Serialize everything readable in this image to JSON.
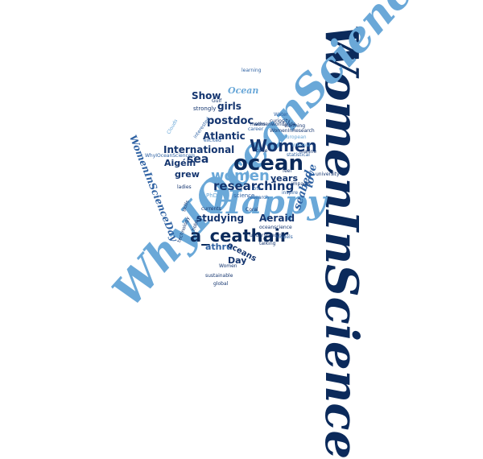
{
  "palette": {
    "navy": "#0b2a5b",
    "dark_blue": "#14356f",
    "mid_blue": "#2f62a3",
    "light_blue": "#6aa8d8",
    "pale_blue": "#8fbfe3"
  },
  "words": {
    "womeninscience": "WomenInScience",
    "whyioceanscience": "WhyIOceanScience",
    "happy": "Happy",
    "ocean_large": "ocean",
    "women_large": "Women",
    "women_small": "women",
    "a_ceathair": "a_ceathair",
    "researching": "researching",
    "womeninscienceday": "WomenInScienceDay",
    "international": "International",
    "atlantic": "Atlantic",
    "postdoc": "postdoc",
    "girls": "girls",
    "show": "Show",
    "ocean_top": "Ocean",
    "sea": "sea",
    "aigein": "Aigéin",
    "grew": "grew",
    "studying": "studying",
    "athru": "athru",
    "oceans": "oceans",
    "day": "Day",
    "aeraid": "Aeraid",
    "years": "years",
    "love": "love",
    "seabed": "seabed",
    "science": "science",
    "strongly": "strongly",
    "learning": "learning",
    "maths": "maths",
    "career": "career",
    "curiosity": "curiosity",
    "water": "Water",
    "marine": "marine",
    "statistical": "statistical",
    "university": "university",
    "impacts": "impacts",
    "inspire": "inspire",
    "research": "research",
    "global": "global",
    "sustainable": "sustainable",
    "talking": "talking",
    "understanding": "understanding",
    "technology": "technology",
    "models": "models",
    "women_small2": "Women",
    "excited": "excited",
    "gulf": "Gulf",
    "clouds": "Clouds",
    "coral": "Coral",
    "phd": "PhD",
    "feel": "feel",
    "code": "code",
    "interest": "interest",
    "european": "European",
    "womeninresearch": "WomenInResearch",
    "oceanscience": "oceanscience",
    "womenworldwide": "womenworldwide",
    "interested": "interested",
    "whyioceanscience_small": "WhyIOceanScienceIs",
    "currents": "currents",
    "ladies": "ladies",
    "hobby": "hobby",
    "skills": "skills",
    "lots": "lots",
    "warming": "warming"
  }
}
